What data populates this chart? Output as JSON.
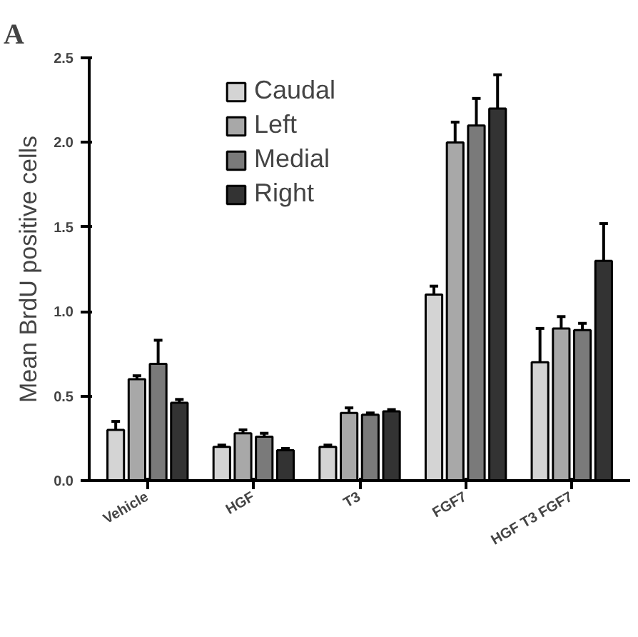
{
  "chart_data": {
    "type": "bar",
    "ylabel": "Mean BrdU positive cells",
    "annotations": [
      "A"
    ],
    "categories": [
      "Vehicle",
      "HGF",
      "T3",
      "FGF7",
      "HGF T3 FGF7"
    ],
    "series": [
      {
        "name": "Caudal",
        "color": "#d4d4d4",
        "values": [
          0.3,
          0.2,
          0.2,
          1.1,
          0.7
        ],
        "errors": [
          0.05,
          0.01,
          0.01,
          0.05,
          0.2
        ]
      },
      {
        "name": "Left",
        "color": "#a8a8a8",
        "values": [
          0.6,
          0.28,
          0.4,
          2.0,
          0.9
        ],
        "errors": [
          0.02,
          0.02,
          0.03,
          0.12,
          0.07
        ]
      },
      {
        "name": "Medial",
        "color": "#7a7a7a",
        "values": [
          0.69,
          0.26,
          0.39,
          2.1,
          0.89
        ],
        "errors": [
          0.14,
          0.02,
          0.01,
          0.16,
          0.04
        ]
      },
      {
        "name": "Right",
        "color": "#333333",
        "values": [
          0.46,
          0.18,
          0.41,
          2.2,
          1.3
        ],
        "errors": [
          0.02,
          0.01,
          0.01,
          0.2,
          0.22
        ]
      }
    ],
    "ylim": [
      0,
      2.5
    ],
    "yticks": [
      {
        "value": 0,
        "label": "0.0"
      },
      {
        "value": 0.5,
        "label": "0.5"
      },
      {
        "value": 1,
        "label": "1.0"
      },
      {
        "value": 1.5,
        "label": "1.5"
      },
      {
        "value": 2,
        "label": "2.0"
      },
      {
        "value": 2.5,
        "label": "2.5"
      }
    ],
    "grid": false,
    "legend": "top left"
  }
}
